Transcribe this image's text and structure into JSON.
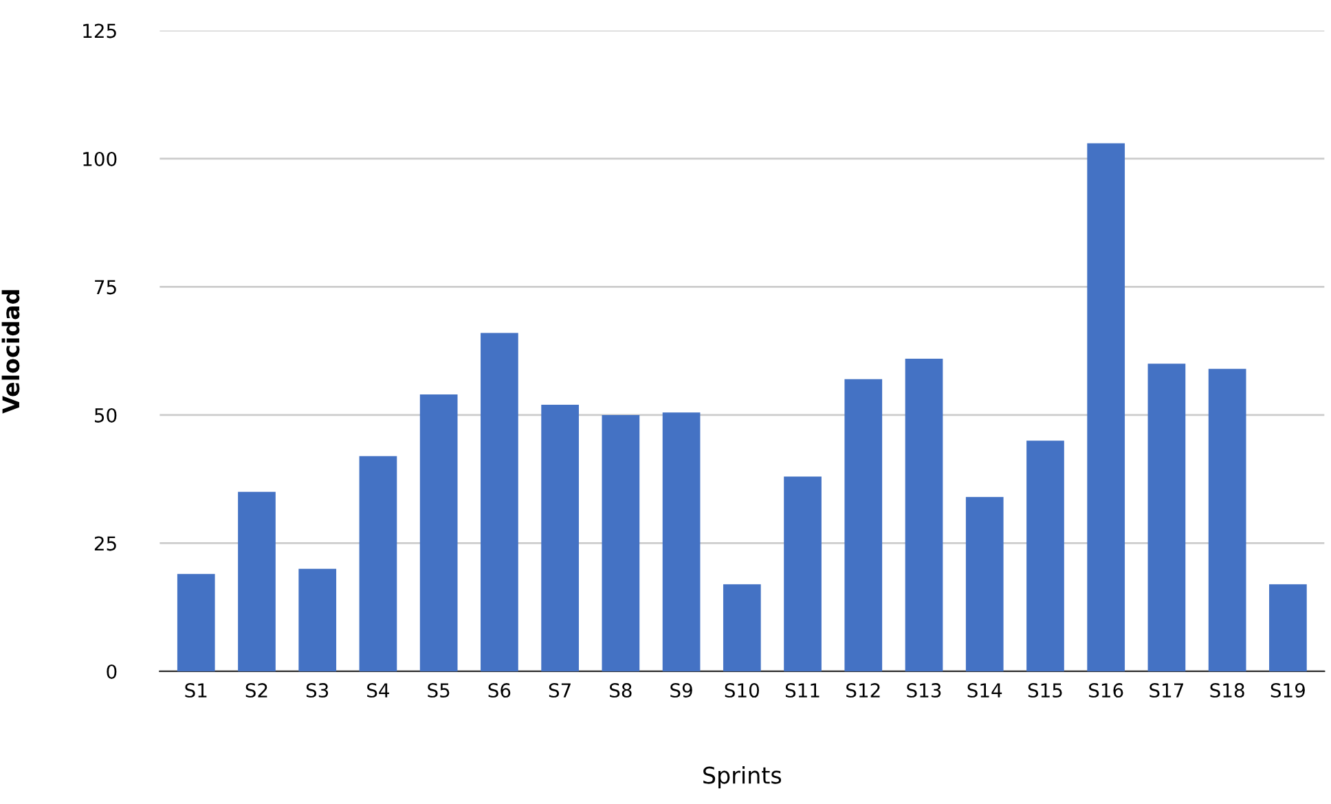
{
  "chart_data": {
    "type": "bar",
    "xlabel": "Sprints",
    "ylabel": "Velocidad",
    "categories": [
      "S1",
      "S2",
      "S3",
      "S4",
      "S5",
      "S6",
      "S7",
      "S8",
      "S9",
      "S10",
      "S11",
      "S12",
      "S13",
      "S14",
      "S15",
      "S16",
      "S17",
      "S18",
      "S19"
    ],
    "values": [
      19,
      35,
      20,
      42,
      54,
      66,
      52,
      50,
      50.5,
      17,
      38,
      57,
      61,
      34,
      45,
      103,
      60,
      59,
      17
    ],
    "color": "#4472c4",
    "ylim": [
      0,
      125
    ],
    "yticks": [
      0,
      25,
      50,
      75,
      100,
      125
    ],
    "grid": "y",
    "legend": false
  }
}
